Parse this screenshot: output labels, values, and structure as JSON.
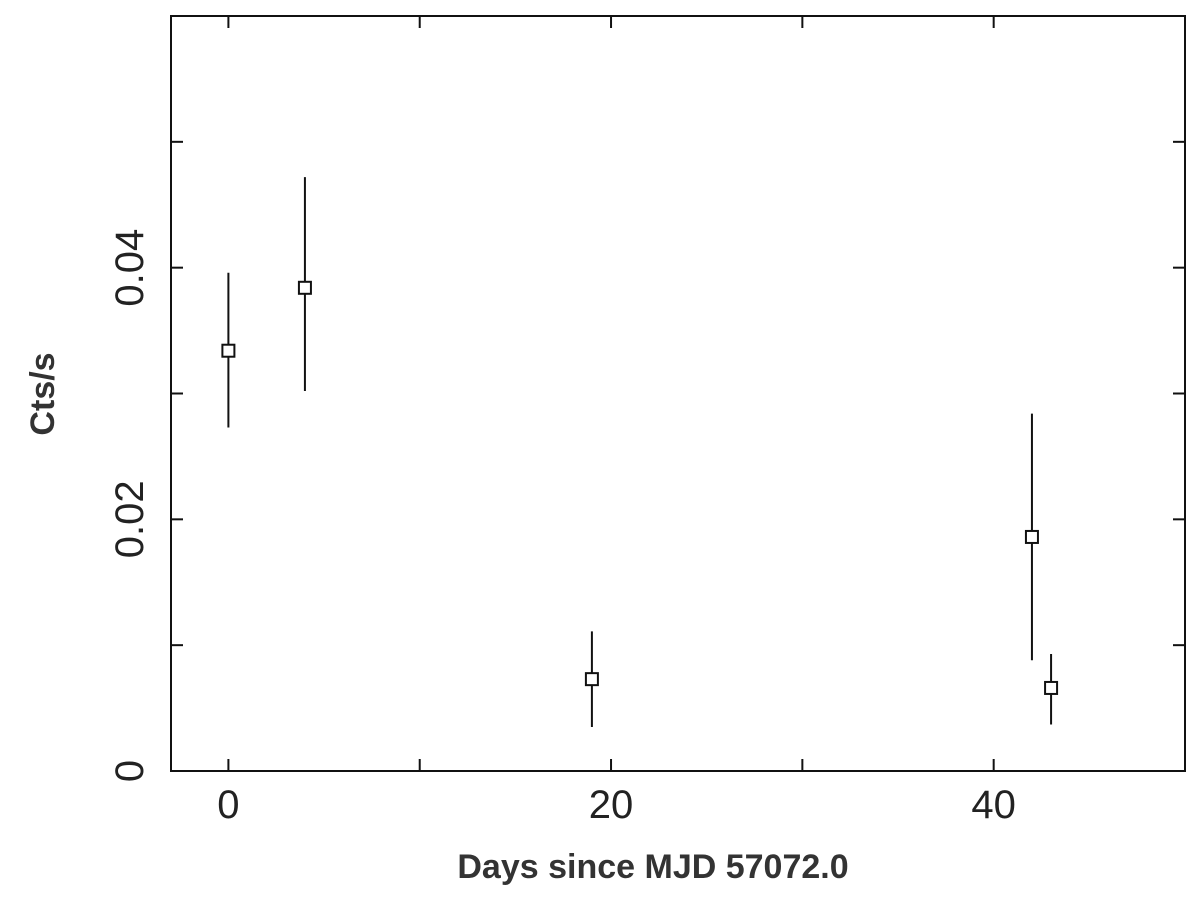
{
  "chart_data": {
    "type": "scatter",
    "title": "",
    "xlabel": "Days since MJD 57072.0",
    "ylabel": "Cts/s",
    "xlim": [
      -3,
      50
    ],
    "ylim": [
      0,
      0.06
    ],
    "x_ticks_major": [
      0,
      20,
      40
    ],
    "x_ticks_minor": [
      10,
      30
    ],
    "y_ticks_major": [
      0,
      0.02,
      0.04
    ],
    "y_ticks_minor": [
      0.01,
      0.03,
      0.05
    ],
    "x_tick_labels": [
      "0",
      "20",
      "40"
    ],
    "y_tick_labels": [
      "0",
      "0.02",
      "0.04"
    ],
    "grid": false,
    "marker": "square-open",
    "series": [
      {
        "points": [
          {
            "x": 0,
            "y": 0.0334,
            "err_low": 0.0273,
            "err_high": 0.0396
          },
          {
            "x": 4,
            "y": 0.0384,
            "err_low": 0.0302,
            "err_high": 0.0472
          },
          {
            "x": 19,
            "y": 0.0073,
            "err_low": 0.0035,
            "err_high": 0.0111
          },
          {
            "x": 42,
            "y": 0.0186,
            "err_low": 0.0088,
            "err_high": 0.0284
          },
          {
            "x": 43,
            "y": 0.0066,
            "err_low": 0.0037,
            "err_high": 0.0093
          }
        ]
      }
    ]
  }
}
